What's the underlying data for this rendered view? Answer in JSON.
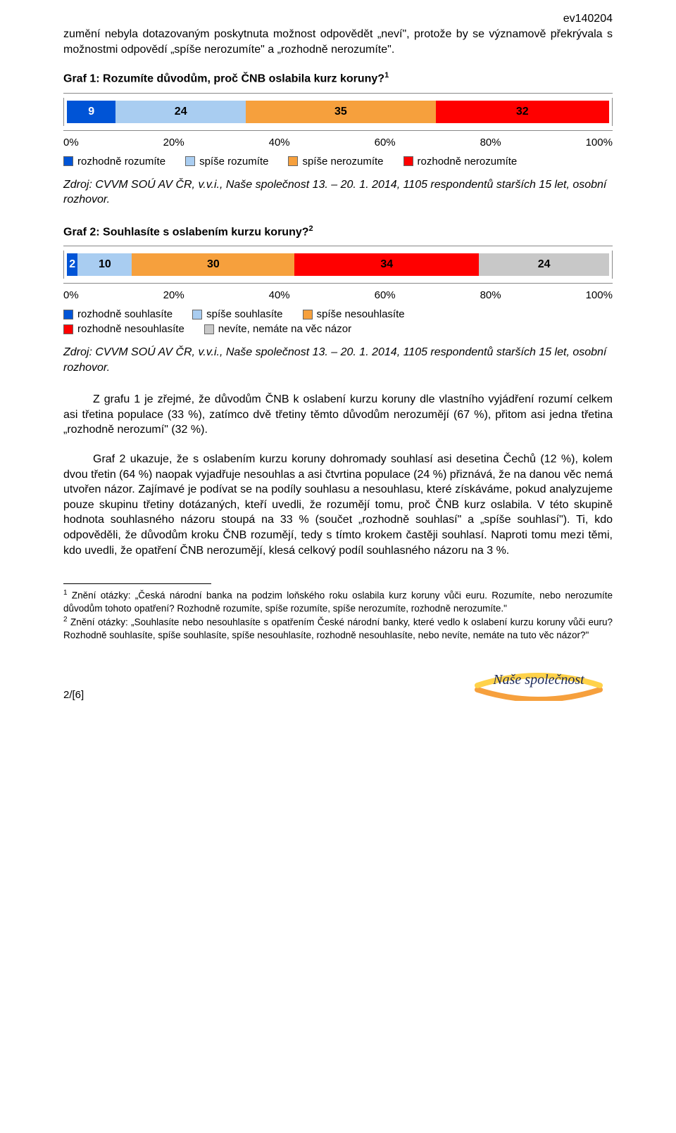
{
  "doc_id": "ev140204",
  "intro": "zumění nebyla dotazovaným poskytnuta možnost odpovědět „neví\", protože by se významově překrývala s možnostmi odpovědí „spíše nerozumíte\" a „rozhodně nerozumíte\".",
  "chart1": {
    "heading_prefix": "Graf 1: Rozumíte důvodům, proč ČNB oslabila kurz koruny?",
    "sup": "1",
    "type": "stacked_bar_100",
    "segments": [
      {
        "label": "rozhodně rozumíte",
        "value": 9,
        "color": "#0054d6",
        "text_color": "#ffffff"
      },
      {
        "label": "spíše rozumíte",
        "value": 24,
        "color": "#a9cdf1",
        "text_color": "#000000"
      },
      {
        "label": "spíše nerozumíte",
        "value": 35,
        "color": "#f6a03d",
        "text_color": "#000000"
      },
      {
        "label": "rozhodně nerozumíte",
        "value": 32,
        "color": "#ff0000",
        "text_color": "#000000"
      }
    ],
    "axis_ticks": [
      "0%",
      "20%",
      "40%",
      "60%",
      "80%",
      "100%"
    ],
    "source": "Zdroj: CVVM SOÚ AV ČR, v.v.i., Naše společnost 13. – 20. 1. 2014, 1105 respondentů starších 15 let, osobní rozhovor."
  },
  "chart2": {
    "heading_prefix": "Graf 2: Souhlasíte s oslabením kurzu koruny?",
    "sup": "2",
    "type": "stacked_bar_100",
    "segments": [
      {
        "label": "rozhodně souhlasíte",
        "value": 2,
        "color": "#0054d6",
        "text_color": "#ffffff"
      },
      {
        "label": "spíše souhlasíte",
        "value": 10,
        "color": "#a9cdf1",
        "text_color": "#000000"
      },
      {
        "label": "spíše nesouhlasíte",
        "value": 30,
        "color": "#f6a03d",
        "text_color": "#000000"
      },
      {
        "label": "rozhodně nesouhlasíte",
        "value": 34,
        "color": "#ff0000",
        "text_color": "#000000"
      },
      {
        "label": "nevíte, nemáte na věc názor",
        "value": 24,
        "color": "#c8c8c8",
        "text_color": "#000000"
      }
    ],
    "legend_layout": [
      [
        "rozhodně souhlasíte",
        "spíše souhlasíte",
        "spíše nesouhlasíte"
      ],
      [
        "rozhodně nesouhlasíte",
        "nevíte, nemáte na věc názor"
      ]
    ],
    "axis_ticks": [
      "0%",
      "20%",
      "40%",
      "60%",
      "80%",
      "100%"
    ],
    "source": "Zdroj: CVVM SOÚ AV ČR, v.v.i., Naše společnost 13. – 20. 1. 2014, 1105 respondentů starších 15 let, osobní rozhovor."
  },
  "body1": "Z grafu 1 je zřejmé, že důvodům ČNB k oslabení kurzu koruny dle vlastního vyjádření rozumí celkem asi třetina populace (33 %), zatímco dvě třetiny těmto důvodům nerozumějí (67 %), přitom asi jedna třetina „rozhodně nerozumí\" (32 %).",
  "body2": "Graf 2 ukazuje, že s oslabením kurzu koruny dohromady souhlasí asi desetina Čechů (12 %), kolem dvou třetin (64 %) naopak vyjadřuje nesouhlas a asi čtvrtina populace (24 %) přiznává, že na danou věc nemá utvořen názor. Zajímavé je podívat se na podíly souhlasu a nesouhlasu, které získáváme, pokud analyzujeme pouze skupinu třetiny dotázaných, kteří uvedli, že rozumějí tomu, proč ČNB kurz oslabila. V této skupině hodnota souhlasného názoru stoupá na 33 % (součet „rozhodně souhlasí\" a „spíše souhlasí\"). Ti, kdo odpověděli, že důvodům kroku ČNB rozumějí, tedy s tímto krokem častěji souhlasí. Naproti tomu mezi těmi, kdo uvedli, že opatření ČNB nerozumějí, klesá celkový podíl souhlasného názoru na 3 %.",
  "footnote1": "Znění otázky: „Česká národní banka na podzim loňského roku oslabila kurz koruny vůči euru. Rozumíte, nebo nerozumíte důvodům tohoto opatření? Rozhodně rozumíte, spíše rozumíte, spíše nerozumíte, rozhodně nerozumíte.\"",
  "footnote2": "Znění otázky: „Souhlasíte nebo nesouhlasíte s opatřením České národní banky, které vedlo k oslabení kurzu koruny vůči euru? Rozhodně souhlasíte, spíše souhlasíte, spíše nesouhlasíte, rozhodně nesouhlasíte, nebo nevíte, nemáte na tuto věc názor?\"",
  "footnote_sup1": "1",
  "footnote_sup2": "2",
  "page_number": "2/[6]",
  "logo_text": "Naše společnost",
  "logo_colors": {
    "arc_left": "#f6a03d",
    "arc_right": "#ffd24a",
    "text": "#1c2a5a"
  }
}
